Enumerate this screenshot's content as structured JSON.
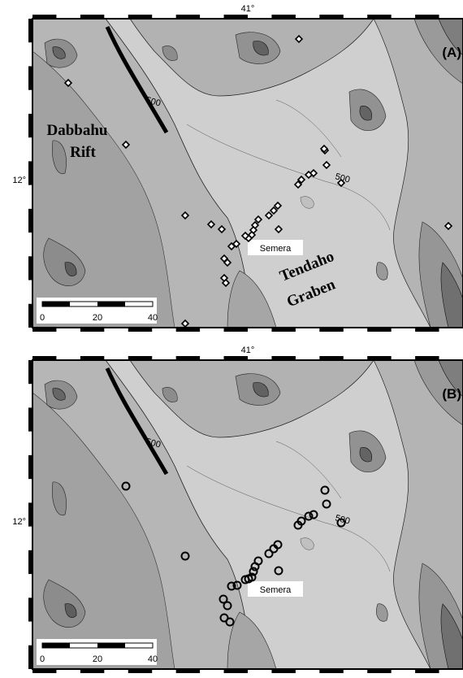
{
  "panels": [
    {
      "id": "A",
      "label": "(A)",
      "top_label": "41°",
      "left_label": "12°",
      "contour_label_1": "500",
      "contour_label_2": "500",
      "town": "Semera",
      "rift_label_1": "Dabbahu",
      "rift_label_2": "Rift",
      "graben_label_1": "Tendaho",
      "graben_label_2": "Graben",
      "scale": [
        "0",
        "20",
        "40"
      ],
      "marker": "diamond"
    },
    {
      "id": "B",
      "label": "(B)",
      "top_label": "41°",
      "left_label": "12°",
      "contour_label_1": "500",
      "contour_label_2": "500",
      "town": "Semera",
      "scale": [
        "0",
        "20",
        "40"
      ],
      "marker": "circle"
    }
  ],
  "colors": {
    "plain": "#cfcfcf",
    "mid": "#b4b4b4",
    "dark": "#969696",
    "peak": "#6e6e6e",
    "fault": "#000000"
  }
}
